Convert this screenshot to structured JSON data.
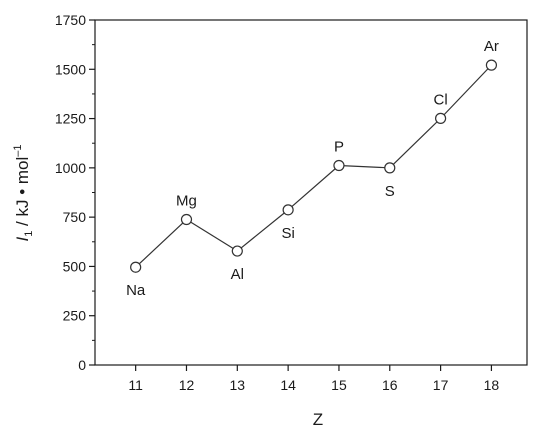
{
  "chart_data": {
    "type": "line",
    "x": [
      11,
      12,
      13,
      14,
      15,
      16,
      17,
      18
    ],
    "values": [
      496,
      738,
      578,
      787,
      1012,
      1000,
      1251,
      1521
    ],
    "labels": [
      "Na",
      "Mg",
      "Al",
      "Si",
      "P",
      "S",
      "Cl",
      "Ar"
    ],
    "xlabel": "Z",
    "ylabel_symbol": "I",
    "ylabel_subscript": "1",
    "ylabel_unit": " / kJ • mol",
    "ylabel_superscript": "–1",
    "xlim": [
      10.2,
      18.7
    ],
    "ylim": [
      0,
      1750
    ],
    "xticks": [
      "11",
      "12",
      "13",
      "14",
      "15",
      "16",
      "17",
      "18"
    ],
    "yticks": [
      "0",
      "250",
      "500",
      "750",
      "1000",
      "1250",
      "1500",
      "1750"
    ],
    "marker": "open-circle",
    "grid": false,
    "line_color": "#333333",
    "marker_face": "#ffffff"
  }
}
